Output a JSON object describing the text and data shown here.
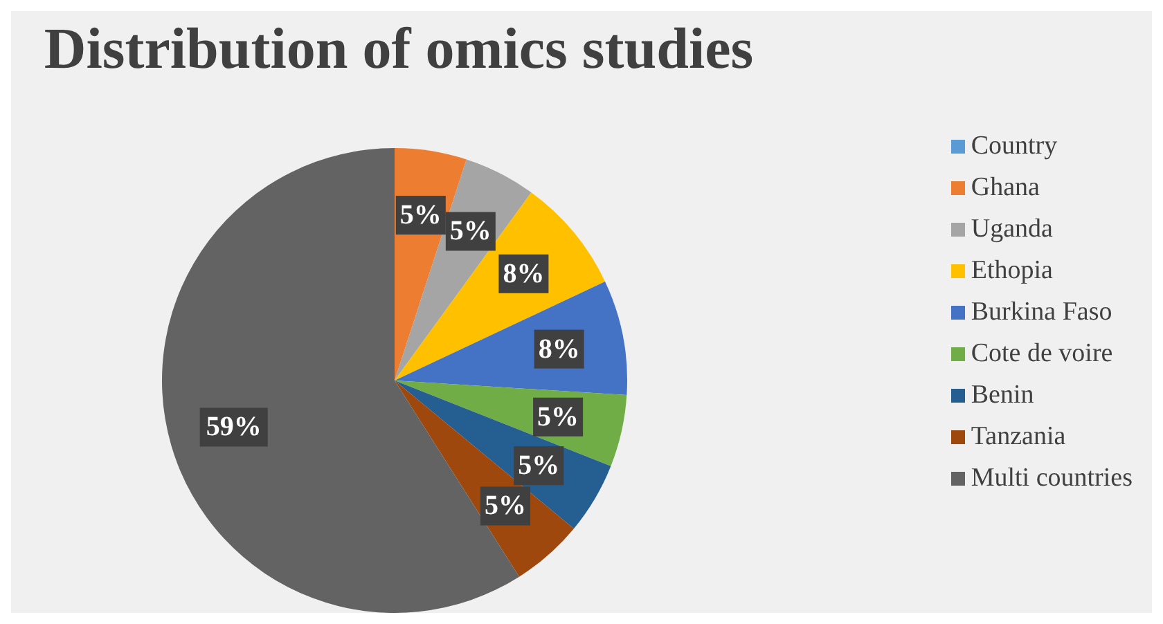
{
  "chart_data": {
    "type": "pie",
    "title": "Distribution of omics studies",
    "categories": [
      "Country",
      "Ghana",
      "Uganda",
      "Ethopia",
      "Burkina Faso",
      "Cote de voire",
      "Benin",
      "Tanzania",
      "Multi countries"
    ],
    "values": [
      0,
      5,
      5,
      8,
      8,
      5,
      5,
      5,
      59
    ],
    "colors": [
      "#5b9bd5",
      "#ed7d31",
      "#a5a5a5",
      "#ffc000",
      "#4472c4",
      "#70ad47",
      "#255e91",
      "#9e480e",
      "#636363"
    ],
    "value_labels": [
      null,
      "5%",
      "5%",
      "8%",
      "8%",
      "5%",
      "5%",
      "5%",
      "59%"
    ],
    "legend": "right"
  }
}
